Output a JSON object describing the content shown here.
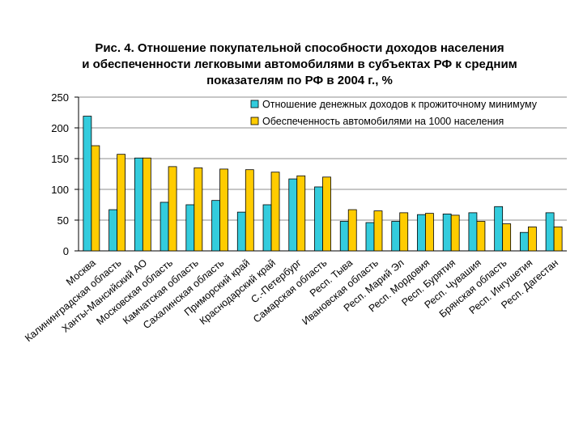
{
  "chart_data": {
    "type": "bar",
    "title_lines": [
      "Рис. 4. Отношение покупательной способности доходов населения",
      "и обеспеченности легковыми автомобилями в субъектах РФ к средним",
      "показателям по РФ в 2004 г., %"
    ],
    "categories": [
      "Москва",
      "Калининградская область",
      "Ханты-Мансийский АО",
      "Московская область",
      "Камчатская область",
      "Сахалинская область",
      "Приморский край",
      "Краснодарский край",
      "С.-Петербург",
      "Самарская область",
      "Респ. Тыва",
      "Ивановская область",
      "Респ. Марий Эл",
      "Респ. Мордовия",
      "Респ. Бурятия",
      "Респ. Чувашия",
      "Брянская область",
      "Респ. Ингушетия",
      "Респ. Дагестан"
    ],
    "series": [
      {
        "name": "Отношение денежных доходов к прожиточному минимуму",
        "color": "#33CCDD",
        "values": [
          219,
          67,
          151,
          79,
          75,
          82,
          63,
          75,
          117,
          104,
          48,
          46,
          48,
          59,
          60,
          62,
          72,
          30,
          62
        ]
      },
      {
        "name": "Обеспеченность автомобилями на 1000 населения",
        "color": "#FFCC00",
        "values": [
          171,
          157,
          151,
          137,
          135,
          133,
          132,
          128,
          122,
          120,
          67,
          65,
          62,
          61,
          58,
          48,
          44,
          39,
          39
        ]
      }
    ],
    "yticks": [
      0,
      50,
      100,
      150,
      200,
      250
    ],
    "ylim": [
      0,
      250
    ],
    "grid": true,
    "legend_position": "top-right",
    "xlabel": "",
    "ylabel": ""
  }
}
